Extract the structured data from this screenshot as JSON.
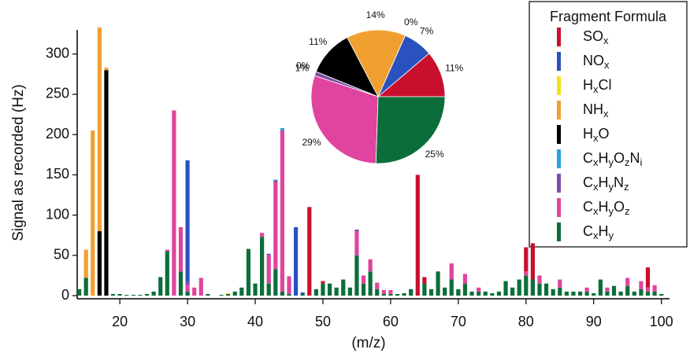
{
  "chart_data": [
    {
      "type": "bar",
      "xlabel": "(m/z)",
      "ylabel": "Signal as recorded (Hz)",
      "legend_title": "Fragment Formula",
      "xlim": [
        13.7,
        101.2
      ],
      "ylim": [
        0,
        330
      ],
      "xticks": [
        20,
        30,
        40,
        50,
        60,
        70,
        80,
        90,
        100
      ],
      "yticks": [
        0,
        50,
        100,
        150,
        200,
        250,
        300
      ],
      "series": [
        {
          "name": "SOx",
          "color": "#c8102e",
          "x": [
            48,
            50,
            64,
            65,
            80,
            81,
            98
          ],
          "values": [
            110,
            3,
            150,
            8,
            30,
            45,
            25
          ]
        },
        {
          "name": "NOx",
          "color": "#2a52be",
          "x": [
            30,
            46,
            47
          ],
          "values": [
            150,
            85,
            2
          ]
        },
        {
          "name": "HxCl",
          "color": "#f2e21c",
          "x": [
            36
          ],
          "values": [
            1
          ]
        },
        {
          "name": "NHx",
          "color": "#f0a030",
          "x": [
            15,
            16,
            17,
            18
          ],
          "values": [
            35,
            205,
            253,
            3
          ]
        },
        {
          "name": "HxO",
          "color": "#000000",
          "x": [
            17,
            18
          ],
          "values": [
            80,
            280
          ]
        },
        {
          "name": "CxHyOzNi",
          "color": "#29a3e0",
          "x": [
            43,
            44
          ],
          "values": [
            1,
            3
          ]
        },
        {
          "name": "CxHyNz",
          "color": "#7b4fa8",
          "x": [
            30,
            42,
            43,
            55
          ],
          "values": [
            5,
            2,
            2,
            2
          ]
        },
        {
          "name": "CxHyOz",
          "color": "#e0449e",
          "x": [
            27,
            28,
            29,
            30,
            31,
            32,
            41,
            42,
            43,
            44,
            45,
            55,
            56,
            57,
            58,
            59,
            60,
            69,
            71,
            73,
            80,
            82,
            85,
            89,
            92,
            95,
            97,
            98,
            99
          ],
          "values": [
            2,
            230,
            55,
            8,
            10,
            22,
            5,
            35,
            108,
            200,
            22,
            30,
            10,
            15,
            8,
            5,
            5,
            20,
            12,
            5,
            5,
            10,
            10,
            5,
            5,
            10,
            10,
            5,
            8
          ]
        },
        {
          "name": "CxHy",
          "color": "#0b6e3a",
          "x": [
            14,
            15,
            16,
            17,
            18,
            19,
            20,
            21,
            22,
            23,
            24,
            25,
            26,
            27,
            28,
            29,
            30,
            31,
            32,
            33,
            34,
            35,
            36,
            37,
            38,
            39,
            40,
            41,
            42,
            43,
            44,
            45,
            46,
            47,
            48,
            49,
            50,
            51,
            52,
            53,
            54,
            55,
            56,
            57,
            58,
            59,
            60,
            61,
            62,
            63,
            64,
            65,
            66,
            67,
            68,
            69,
            70,
            71,
            72,
            73,
            74,
            75,
            76,
            77,
            78,
            79,
            80,
            81,
            82,
            83,
            84,
            85,
            86,
            87,
            88,
            89,
            90,
            91,
            92,
            93,
            94,
            95,
            96,
            97,
            98,
            99,
            100
          ],
          "values": [
            8,
            22,
            0,
            0,
            0,
            2,
            2,
            1,
            1,
            1,
            2,
            5,
            23,
            55,
            0,
            30,
            5,
            0,
            0,
            2,
            0,
            1,
            2,
            5,
            10,
            58,
            15,
            73,
            15,
            33,
            5,
            2,
            0,
            2,
            0,
            8,
            15,
            15,
            10,
            20,
            10,
            50,
            15,
            30,
            8,
            2,
            2,
            2,
            3,
            8,
            0,
            15,
            8,
            30,
            10,
            20,
            8,
            15,
            5,
            5,
            5,
            3,
            5,
            18,
            10,
            20,
            25,
            20,
            15,
            15,
            8,
            10,
            5,
            5,
            5,
            5,
            3,
            20,
            5,
            12,
            5,
            12,
            5,
            8,
            5,
            5,
            2
          ]
        }
      ]
    },
    {
      "type": "pie",
      "values": [
        11,
        7,
        0,
        14,
        11,
        0,
        1,
        29,
        25
      ],
      "value_labels": [
        "11%",
        "7%",
        "0%",
        "14%",
        "11%",
        "0%",
        "1%",
        "29%",
        "25%"
      ],
      "colors": [
        "#c8102e",
        "#2a52be",
        "#f2e21c",
        "#f0a030",
        "#000000",
        "#29a3e0",
        "#7b4fa8",
        "#e0449e",
        "#0b6e3a"
      ]
    }
  ]
}
